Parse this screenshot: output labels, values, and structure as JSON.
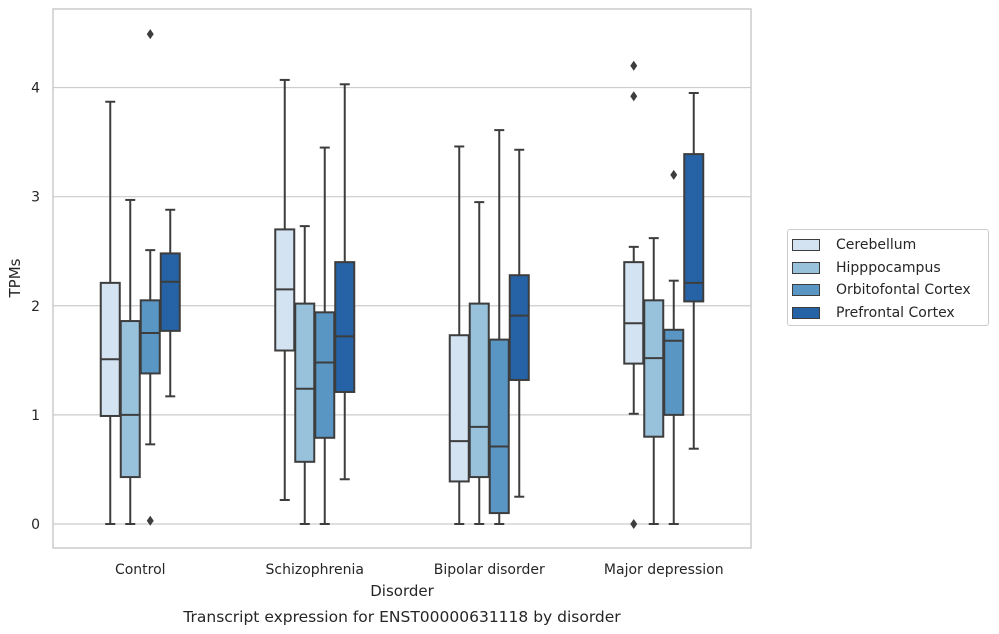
{
  "chart_data": {
    "type": "boxplot",
    "title": "Transcript expression for ENST00000631118 by disorder",
    "xlabel": "Disorder",
    "ylabel": "TPMs",
    "ylim": [
      -0.22,
      4.72
    ],
    "yticks": [
      0,
      1,
      2,
      3,
      4
    ],
    "grid": "horizontal",
    "legend_position": "right",
    "categories": [
      "Control",
      "Schizophrenia",
      "Bipolar disorder",
      "Major depression"
    ],
    "series": [
      {
        "name": "Cerebellum",
        "color": "#d3e3f2",
        "boxes": [
          {
            "whislo": 0.0,
            "q1": 0.99,
            "med": 1.51,
            "q3": 2.21,
            "whishi": 3.87,
            "fliers": []
          },
          {
            "whislo": 0.22,
            "q1": 1.59,
            "med": 2.15,
            "q3": 2.7,
            "whishi": 4.07,
            "fliers": []
          },
          {
            "whislo": 0.0,
            "q1": 0.39,
            "med": 0.76,
            "q3": 1.73,
            "whishi": 3.46,
            "fliers": []
          },
          {
            "whislo": 1.01,
            "q1": 1.47,
            "med": 1.84,
            "q3": 2.4,
            "whishi": 2.54,
            "fliers": [
              0.0,
              3.92,
              4.2
            ]
          }
        ]
      },
      {
        "name": "Hipppocampus",
        "color": "#98c1dc",
        "boxes": [
          {
            "whislo": 0.0,
            "q1": 0.43,
            "med": 1.0,
            "q3": 1.86,
            "whishi": 2.97,
            "fliers": []
          },
          {
            "whislo": 0.0,
            "q1": 0.57,
            "med": 1.24,
            "q3": 2.02,
            "whishi": 2.73,
            "fliers": []
          },
          {
            "whislo": 0.0,
            "q1": 0.43,
            "med": 0.89,
            "q3": 2.02,
            "whishi": 2.95,
            "fliers": []
          },
          {
            "whislo": 0.0,
            "q1": 0.8,
            "med": 1.52,
            "q3": 2.05,
            "whishi": 2.62,
            "fliers": []
          }
        ]
      },
      {
        "name": "Orbitofontal Cortex",
        "color": "#5996c4",
        "boxes": [
          {
            "whislo": 0.73,
            "q1": 1.38,
            "med": 1.75,
            "q3": 2.05,
            "whishi": 2.51,
            "fliers": [
              0.03,
              4.49
            ]
          },
          {
            "whislo": 0.0,
            "q1": 0.79,
            "med": 1.48,
            "q3": 1.94,
            "whishi": 3.45,
            "fliers": []
          },
          {
            "whislo": 0.0,
            "q1": 0.1,
            "med": 0.71,
            "q3": 1.69,
            "whishi": 3.61,
            "fliers": []
          },
          {
            "whislo": 0.0,
            "q1": 1.0,
            "med": 1.68,
            "q3": 1.78,
            "whishi": 2.23,
            "fliers": [
              3.2
            ]
          }
        ]
      },
      {
        "name": "Prefrontal Cortex",
        "color": "#2563a6",
        "boxes": [
          {
            "whislo": 1.17,
            "q1": 1.77,
            "med": 2.22,
            "q3": 2.48,
            "whishi": 2.88,
            "fliers": []
          },
          {
            "whislo": 0.41,
            "q1": 1.21,
            "med": 1.72,
            "q3": 2.4,
            "whishi": 4.03,
            "fliers": []
          },
          {
            "whislo": 0.25,
            "q1": 1.32,
            "med": 1.91,
            "q3": 2.28,
            "whishi": 3.43,
            "fliers": []
          },
          {
            "whislo": 0.69,
            "q1": 2.04,
            "med": 2.21,
            "q3": 3.39,
            "whishi": 3.95,
            "fliers": []
          }
        ]
      }
    ]
  }
}
